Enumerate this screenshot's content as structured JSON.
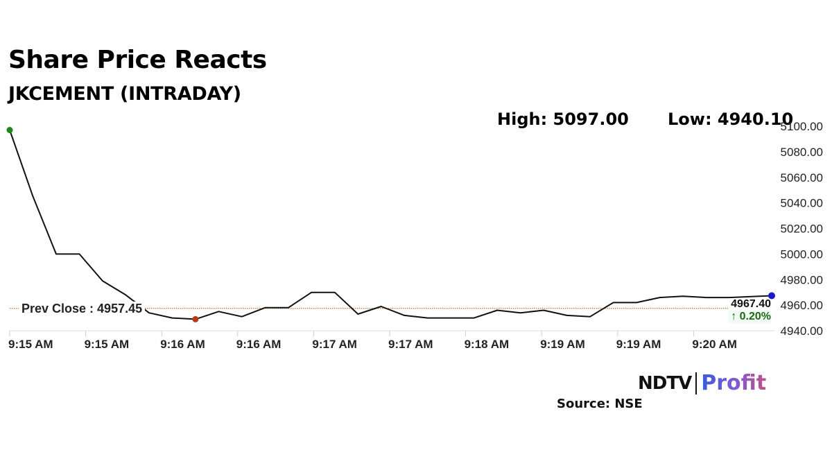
{
  "header": {
    "title": "Share Price Reacts",
    "subtitle": "JKCEMENT (INTRADAY)",
    "high_label": "High: 5097.00",
    "low_label": "Low: 4940.10"
  },
  "annotations": {
    "prev_close_label": "Prev Close : 4957.45",
    "last_price": "4967.40",
    "change": "↑ 0.20%"
  },
  "footer": {
    "logo_ndtv": "NDTV",
    "logo_profit": "Profit",
    "source": "Source: NSE"
  },
  "colors": {
    "line": "#111111",
    "high_marker": "#1a8a1a",
    "low_marker": "#b83a16",
    "last_marker": "#1a1acc",
    "prev_close_line": "#b5652a",
    "change_positive": "#1e6b12"
  },
  "chart_data": {
    "type": "line",
    "title": "Share Price Reacts",
    "subtitle": "JKCEMENT (INTRADAY)",
    "xlabel": "",
    "ylabel": "",
    "ylim": [
      4940,
      5100
    ],
    "y_ticks": [
      "5100.00",
      "5080.00",
      "5060.00",
      "5040.00",
      "5020.00",
      "5000.00",
      "4980.00",
      "4960.00",
      "4940.00"
    ],
    "x_ticks": [
      "9:15 AM",
      "9:15 AM",
      "9:16 AM",
      "9:16 AM",
      "9:17 AM",
      "9:17 AM",
      "9:18 AM",
      "9:19 AM",
      "9:19 AM",
      "9:20 AM"
    ],
    "grid": false,
    "legend": null,
    "high": 5097.0,
    "low": 4940.1,
    "prev_close": 4957.45,
    "last": 4967.4,
    "change_pct": 0.2,
    "series": [
      {
        "name": "JKCEMENT",
        "values": [
          5097,
          5045,
          5000,
          5000,
          4979,
          4968,
          4954,
          4950,
          4949,
          4955,
          4951,
          4958,
          4958,
          4970,
          4970,
          4953,
          4959,
          4952,
          4950,
          4950,
          4950,
          4956,
          4954,
          4956,
          4952,
          4951,
          4962,
          4962,
          4966,
          4967,
          4966,
          4966,
          4967.4
        ]
      }
    ]
  }
}
